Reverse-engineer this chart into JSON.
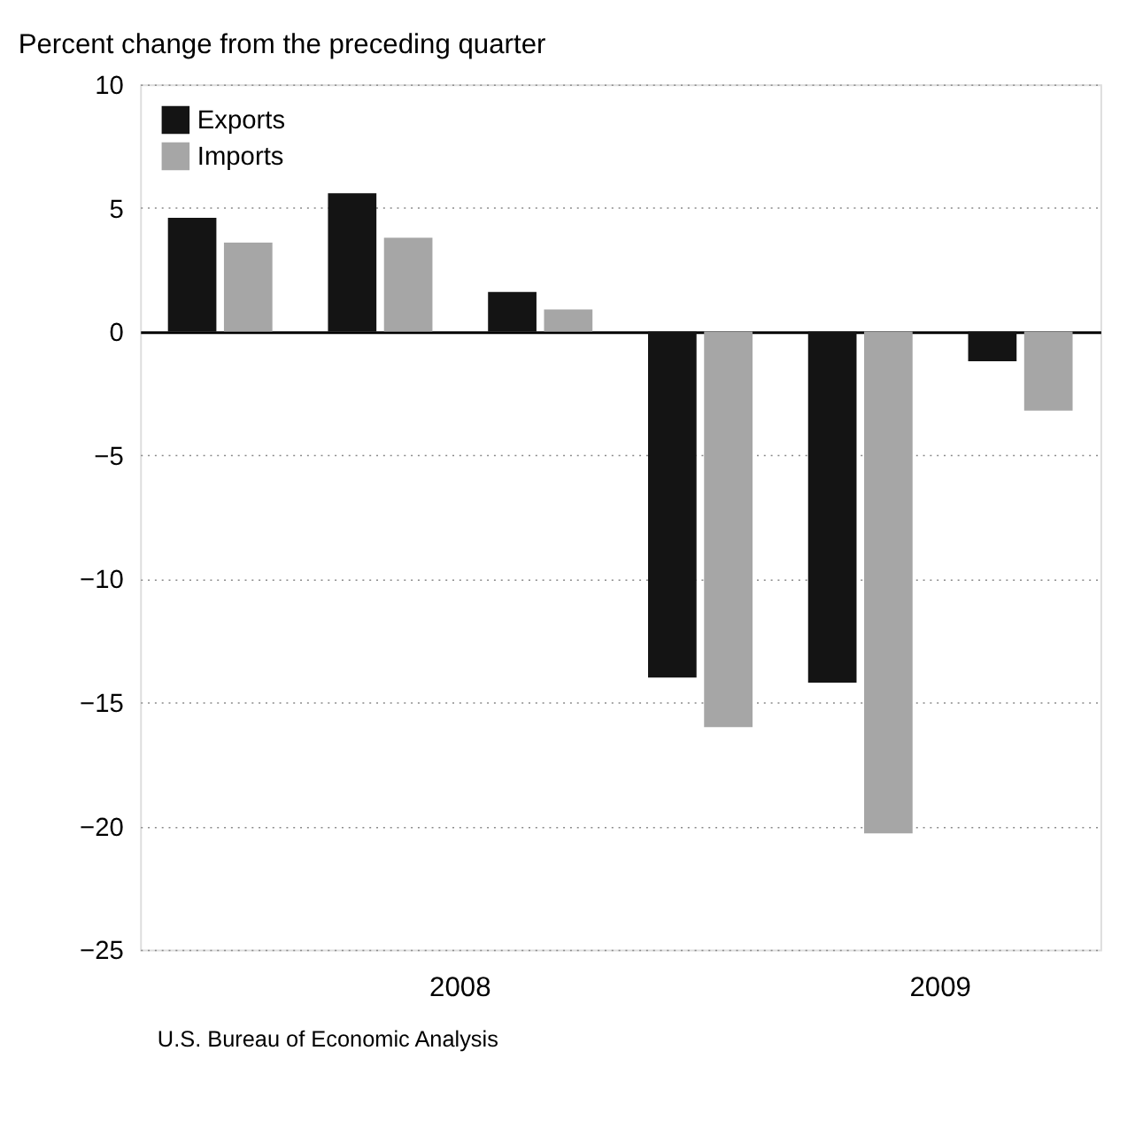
{
  "chart_data": {
    "type": "bar",
    "ylabel": "Percent change from the preceding quarter",
    "categories": [
      null,
      null,
      null,
      null,
      null,
      null
    ],
    "series": [
      {
        "name": "Exports",
        "color": "#141414",
        "values": [
          4.6,
          5.6,
          1.6,
          -14.0,
          -14.2,
          -1.2
        ]
      },
      {
        "name": "Imports",
        "color": "#a6a6a6",
        "values": [
          3.6,
          3.8,
          0.9,
          -16.0,
          -20.3,
          -3.2
        ]
      }
    ],
    "ylim": [
      -25,
      10
    ],
    "yticks": [
      -25,
      -20,
      -15,
      -10,
      -5,
      0,
      5,
      10
    ],
    "grid": "y",
    "legend": "top left",
    "tick_labels": "y",
    "annotations": [
      "2008",
      "2009",
      "U.S. Bureau of Economic Analysis"
    ]
  }
}
